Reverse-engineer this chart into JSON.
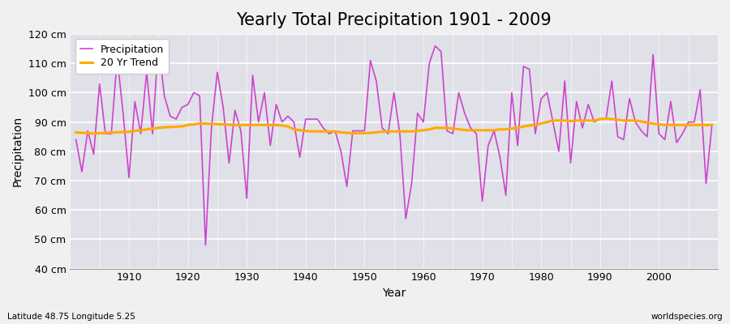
{
  "title": "Yearly Total Precipitation 1901 - 2009",
  "xlabel": "Year",
  "ylabel": "Precipitation",
  "subtitle_left": "Latitude 48.75 Longitude 5.25",
  "watermark": "worldspecies.org",
  "years": [
    1901,
    1902,
    1903,
    1904,
    1905,
    1906,
    1907,
    1908,
    1909,
    1910,
    1911,
    1912,
    1913,
    1914,
    1915,
    1916,
    1917,
    1918,
    1919,
    1920,
    1921,
    1922,
    1923,
    1924,
    1925,
    1926,
    1927,
    1928,
    1929,
    1930,
    1931,
    1932,
    1933,
    1934,
    1935,
    1936,
    1937,
    1938,
    1939,
    1940,
    1941,
    1942,
    1943,
    1944,
    1945,
    1946,
    1947,
    1948,
    1949,
    1950,
    1951,
    1952,
    1953,
    1954,
    1955,
    1956,
    1957,
    1958,
    1959,
    1960,
    1961,
    1962,
    1963,
    1964,
    1965,
    1966,
    1967,
    1968,
    1969,
    1970,
    1971,
    1972,
    1973,
    1974,
    1975,
    1976,
    1977,
    1978,
    1979,
    1980,
    1981,
    1982,
    1983,
    1984,
    1985,
    1986,
    1987,
    1988,
    1989,
    1990,
    1991,
    1992,
    1993,
    1994,
    1995,
    1996,
    1997,
    1998,
    1999,
    2000,
    2001,
    2002,
    2003,
    2004,
    2005,
    2006,
    2007,
    2008,
    2009
  ],
  "precipitation": [
    84,
    73,
    87,
    79,
    103,
    86,
    86,
    112,
    93,
    71,
    97,
    86,
    107,
    86,
    117,
    99,
    92,
    91,
    95,
    96,
    100,
    99,
    48,
    88,
    107,
    95,
    76,
    94,
    87,
    64,
    106,
    90,
    100,
    82,
    96,
    90,
    92,
    90,
    78,
    91,
    91,
    91,
    88,
    86,
    87,
    80,
    68,
    87,
    87,
    87,
    111,
    104,
    88,
    86,
    100,
    86,
    57,
    69,
    93,
    90,
    110,
    116,
    114,
    87,
    86,
    100,
    93,
    88,
    86,
    63,
    82,
    87,
    78,
    65,
    100,
    82,
    109,
    108,
    86,
    98,
    100,
    90,
    80,
    104,
    76,
    97,
    88,
    96,
    90,
    91,
    91,
    104,
    85,
    84,
    98,
    90,
    87,
    85,
    113,
    86,
    84,
    97,
    83,
    86,
    90,
    90,
    101,
    69,
    89
  ],
  "trend": [
    86.5,
    86.3,
    86.2,
    86.1,
    86.2,
    86.3,
    86.4,
    86.5,
    86.6,
    86.7,
    87.0,
    87.2,
    87.5,
    87.8,
    88.0,
    88.2,
    88.3,
    88.4,
    88.5,
    89.0,
    89.2,
    89.5,
    89.5,
    89.4,
    89.3,
    89.2,
    89.1,
    89.0,
    89.0,
    89.0,
    89.0,
    89.0,
    89.0,
    89.0,
    89.0,
    88.8,
    88.5,
    87.5,
    87.2,
    87.0,
    86.8,
    86.8,
    86.8,
    86.8,
    86.8,
    86.5,
    86.3,
    86.2,
    86.2,
    86.2,
    86.3,
    86.5,
    86.7,
    86.8,
    86.8,
    86.8,
    86.8,
    86.8,
    87.0,
    87.2,
    87.5,
    88.0,
    88.0,
    88.0,
    87.8,
    87.5,
    87.3,
    87.2,
    87.2,
    87.2,
    87.2,
    87.2,
    87.5,
    87.5,
    87.8,
    88.0,
    88.5,
    88.8,
    89.0,
    89.5,
    90.0,
    90.5,
    90.5,
    90.5,
    90.3,
    90.5,
    90.5,
    90.5,
    90.5,
    91.0,
    91.2,
    91.0,
    90.8,
    90.5,
    90.5,
    90.5,
    90.2,
    89.8,
    89.5,
    89.2,
    89.0,
    89.0,
    89.0,
    89.0,
    89.0,
    89.0,
    89.0,
    89.0,
    89.0
  ],
  "precip_color": "#cc44cc",
  "trend_color": "#ffaa00",
  "bg_color": "#f0f0f0",
  "plot_bg_color": "#e0e0e8",
  "grid_color": "#ffffff",
  "ylim": [
    40,
    120
  ],
  "ytick_labels": [
    "40 cm",
    "50 cm",
    "60 cm",
    "70 cm",
    "80 cm",
    "90 cm",
    "100 cm",
    "110 cm",
    "120 cm"
  ],
  "ytick_values": [
    40,
    50,
    60,
    70,
    80,
    90,
    100,
    110,
    120
  ],
  "xtick_values": [
    1910,
    1920,
    1930,
    1940,
    1950,
    1960,
    1970,
    1980,
    1990,
    2000
  ],
  "title_fontsize": 15,
  "axis_label_fontsize": 10,
  "tick_fontsize": 9,
  "legend_fontsize": 9
}
